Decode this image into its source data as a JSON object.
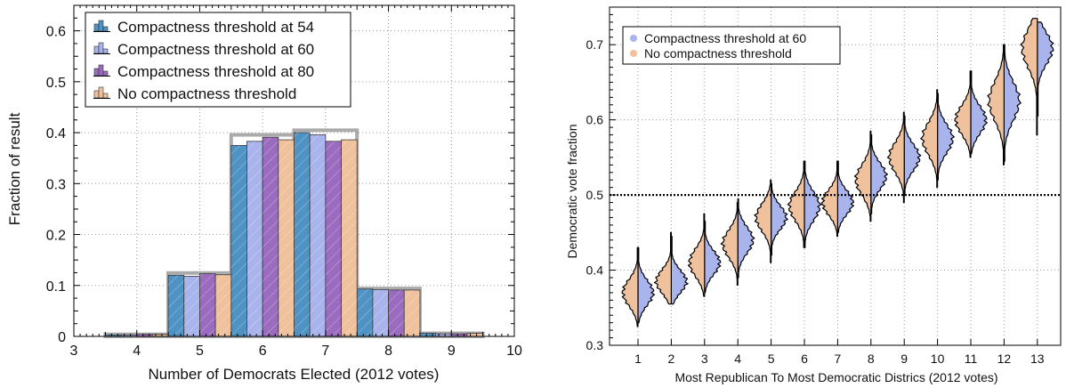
{
  "chart_data": [
    {
      "type": "bar",
      "title": "",
      "xlabel": "Number of Democrats Elected (2012 votes)",
      "ylabel": "Fraction of result",
      "xlim": [
        3,
        10
      ],
      "ylim": [
        0,
        0.65
      ],
      "xticks": [
        "3",
        "4",
        "5",
        "6",
        "7",
        "8",
        "9",
        "10"
      ],
      "yticks": [
        "0",
        "0.1",
        "0.2",
        "0.3",
        "0.4",
        "0.5",
        "0.6"
      ],
      "categories": [
        4,
        5,
        6,
        7,
        8,
        9
      ],
      "legend_position": "top-left",
      "series": [
        {
          "name": "Compactness threshold at 54",
          "color": "#4f93c4",
          "values": [
            0.003,
            0.12,
            0.375,
            0.4,
            0.093,
            0.006
          ]
        },
        {
          "name": "Compactness threshold at 60",
          "color": "#a9b3ec",
          "values": [
            0.003,
            0.118,
            0.383,
            0.396,
            0.092,
            0.005
          ]
        },
        {
          "name": "Compactness threshold at 80",
          "color": "#9b6bbf",
          "values": [
            0.004,
            0.123,
            0.391,
            0.383,
            0.091,
            0.005
          ]
        },
        {
          "name": "No compactness threshold",
          "color": "#efc19c",
          "values": [
            0.004,
            0.121,
            0.386,
            0.386,
            0.091,
            0.006
          ]
        }
      ],
      "envelope_color": "#aaaaaa"
    },
    {
      "type": "violin",
      "title": "",
      "xlabel": "Most Republican To Most Democratic Districs (2012 votes)",
      "ylabel": "Democratic vote fraction",
      "ylim": [
        0.3,
        0.75
      ],
      "yticks": [
        "0.3",
        "0.4",
        "0.5",
        "0.6",
        "0.7"
      ],
      "categories": [
        "1",
        "2",
        "3",
        "4",
        "5",
        "6",
        "7",
        "8",
        "9",
        "10",
        "11",
        "12",
        "13"
      ],
      "reference_line": 0.5,
      "legend_position": "top-left",
      "series": [
        {
          "name": "Compactness threshold at 60",
          "color": "#a9b3ec",
          "side": "right",
          "median": [
            0.37,
            0.385,
            0.41,
            0.44,
            0.47,
            0.485,
            0.49,
            0.525,
            0.55,
            0.575,
            0.6,
            0.625,
            0.695
          ],
          "min": [
            0.33,
            0.355,
            0.37,
            0.39,
            0.42,
            0.43,
            0.45,
            0.475,
            0.5,
            0.52,
            0.555,
            0.545,
            0.605
          ],
          "max": [
            0.43,
            0.445,
            0.465,
            0.495,
            0.515,
            0.545,
            0.545,
            0.58,
            0.605,
            0.635,
            0.665,
            0.7,
            0.73
          ]
        },
        {
          "name": "No compactness threshold",
          "color": "#efc19c",
          "side": "left",
          "median": [
            0.37,
            0.385,
            0.41,
            0.435,
            0.47,
            0.485,
            0.49,
            0.52,
            0.55,
            0.575,
            0.6,
            0.625,
            0.695
          ],
          "min": [
            0.325,
            0.355,
            0.365,
            0.38,
            0.41,
            0.43,
            0.445,
            0.465,
            0.49,
            0.51,
            0.55,
            0.54,
            0.58
          ],
          "max": [
            0.43,
            0.45,
            0.475,
            0.49,
            0.52,
            0.545,
            0.545,
            0.585,
            0.61,
            0.64,
            0.665,
            0.7,
            0.735
          ]
        }
      ]
    }
  ]
}
